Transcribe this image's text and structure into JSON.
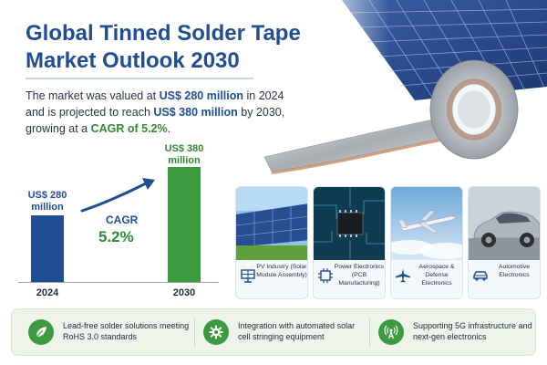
{
  "header": {
    "title_line1": "Global Tinned Solder Tape",
    "title_line2": "Market Outlook 2030"
  },
  "summary": {
    "part1": "The market was valued at ",
    "value_2024": "US$ 280 million",
    "part2": " in 2024 and is projected to reach ",
    "value_2030": "US$ 380 million",
    "part3": " by 2030, growing at a ",
    "cagr": "CAGR of 5.2%",
    "part4": "."
  },
  "chart_data": {
    "type": "bar",
    "categories": [
      "2024",
      "2030"
    ],
    "values": [
      280,
      380
    ],
    "value_labels": [
      "US$ 280 million",
      "US$ 380 million"
    ],
    "unit": "US$ million",
    "colors": [
      "#1f4e93",
      "#3c9a3f"
    ],
    "annotation": {
      "label": "CAGR",
      "value": "5.2%"
    },
    "title": "",
    "xlabel": "",
    "ylabel": "",
    "grid": false
  },
  "applications": [
    {
      "label": "PV Industry (Solar Module Assembly)",
      "icon": "solar-panel-icon",
      "image": "solar-field-image"
    },
    {
      "label": "Power Electronics (PCB Manufacturing)",
      "icon": "chip-icon",
      "image": "circuit-board-image"
    },
    {
      "label": "Aerospace & Defense Electronics",
      "icon": "airplane-icon",
      "image": "airplane-image"
    },
    {
      "label": "Automotive Electronics",
      "icon": "car-icon",
      "image": "car-image"
    }
  ],
  "features": [
    {
      "text": "Lead-free solder solutions meeting RoHS 3.0 standards",
      "icon": "leaf-icon"
    },
    {
      "text": "Integration with automated solar cell stringing equipment",
      "icon": "gear-icon"
    },
    {
      "text": "Supporting 5G infrastructure and next-gen electronics",
      "icon": "signal-tower-icon"
    }
  ],
  "colors": {
    "brand_blue": "#1f4e93",
    "accent_green": "#3c9a3f",
    "feature_bg": "#eef4ea"
  }
}
